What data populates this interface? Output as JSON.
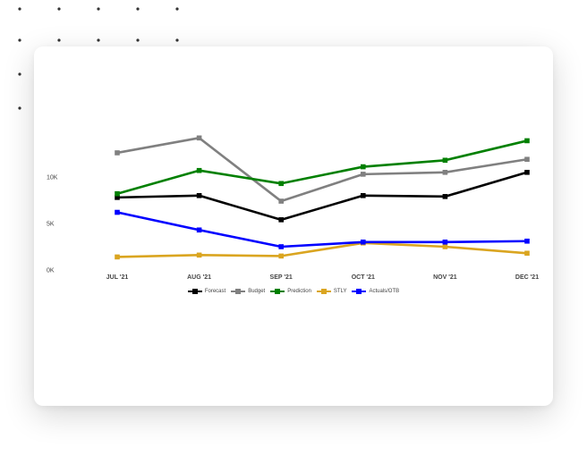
{
  "chart_data": {
    "type": "line",
    "title": "",
    "xlabel": "",
    "ylabel": "",
    "categories": [
      "JUL '21",
      "AUG '21",
      "SEP '21",
      "OCT '21",
      "NOV '21",
      "DEC '21"
    ],
    "y_ticks": [
      "0K",
      "5K",
      "10K"
    ],
    "ylim": [
      0,
      20000
    ],
    "grid": false,
    "legend_position": "bottom-center",
    "series": [
      {
        "name": "Forecast",
        "color": "#000000",
        "values": [
          7800,
          8000,
          5400,
          8000,
          7900,
          10500
        ]
      },
      {
        "name": "Budget",
        "color": "#808080",
        "values": [
          12600,
          14200,
          7400,
          10300,
          10500,
          11900
        ]
      },
      {
        "name": "Prediction",
        "color": "#008000",
        "values": [
          8200,
          10700,
          9300,
          11100,
          11800,
          13900
        ]
      },
      {
        "name": "STLY",
        "color": "#DAA520",
        "values": [
          1400,
          1600,
          1500,
          2900,
          2500,
          1800
        ]
      },
      {
        "name": "Actuals/OTB",
        "color": "#0000FF",
        "values": [
          6200,
          4300,
          2500,
          3000,
          3000,
          3100
        ]
      }
    ]
  }
}
